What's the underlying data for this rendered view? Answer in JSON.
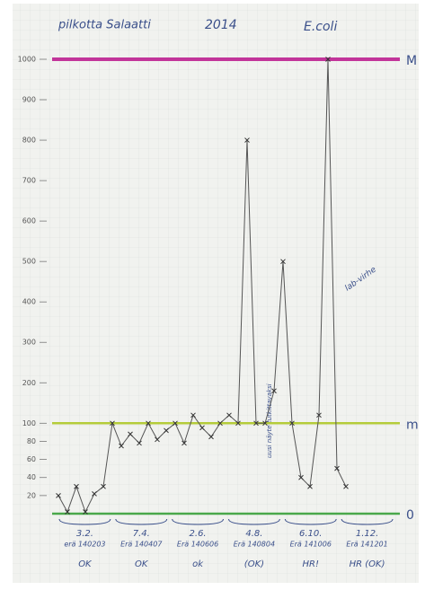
{
  "chart_data": {
    "type": "line",
    "title": "pilkotta Salaatti",
    "subtitle": "2014",
    "y_label": "E.coli",
    "series": [
      {
        "name": "E.coli",
        "color": "#555555",
        "values": [
          20,
          2,
          30,
          2,
          22,
          30,
          100,
          75,
          88,
          78,
          100,
          82,
          92,
          100,
          78,
          120,
          95,
          85,
          100,
          120,
          100,
          800,
          100,
          100,
          180,
          500,
          100,
          40,
          30,
          120,
          1000,
          50,
          30
        ]
      }
    ],
    "ylim": [
      0,
      1000
    ],
    "yticks": [
      20,
      40,
      60,
      80,
      100,
      200,
      300,
      400,
      500,
      600,
      700,
      800,
      900,
      1000
    ],
    "reference_lines": [
      {
        "value": 1000,
        "label": "M",
        "color": "#c2359a"
      },
      {
        "value": 100,
        "label": "m",
        "color": "#b5cc3a"
      },
      {
        "value": 0,
        "label": "0",
        "color": "#4aa84a"
      }
    ],
    "groups": [
      {
        "date": "3.2.",
        "batch": "erä 140203",
        "result": "OK"
      },
      {
        "date": "7.4.",
        "batch": "Erä 140407",
        "result": "OK"
      },
      {
        "date": "2.6.",
        "batch": "Erä 140606",
        "result": "ok"
      },
      {
        "date": "4.8.",
        "batch": "Erä 140804",
        "result": "(OK)"
      },
      {
        "date": "6.10.",
        "batch": "Erä 141006",
        "result": "HR!"
      },
      {
        "date": "1.12.",
        "batch": "Erä 141201",
        "result": "HR (OK)"
      }
    ],
    "annotations": [
      "lab-virhe",
      "uusi näyte tutkittavaksi"
    ]
  }
}
